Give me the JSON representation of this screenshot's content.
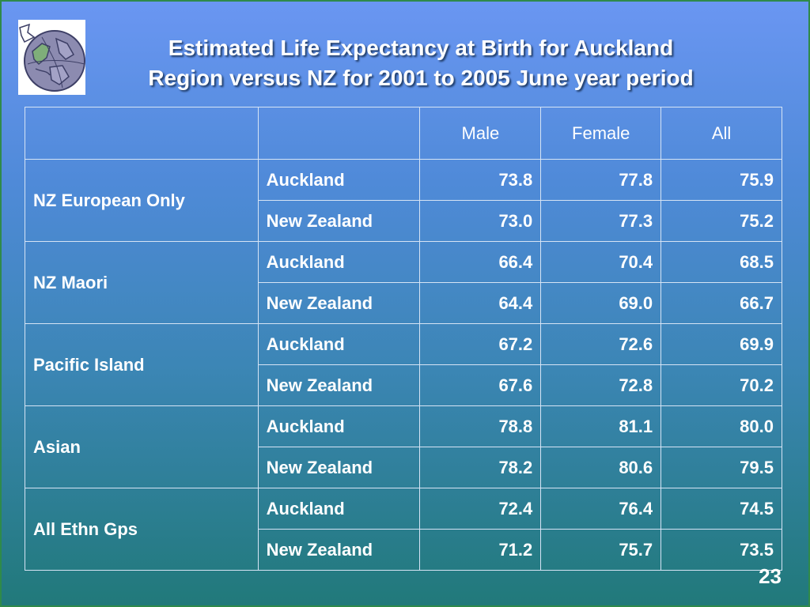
{
  "title": {
    "line1": "Estimated Life Expectancy at Birth for Auckland",
    "line2": "Region versus NZ for 2001 to 2005 June year period"
  },
  "table": {
    "columns": [
      "",
      "",
      "Male",
      "Female",
      "All"
    ],
    "groups": [
      {
        "ethnicity": "NZ European Only",
        "rows": [
          {
            "area": "Auckland",
            "male": "73.8",
            "female": "77.8",
            "all": "75.9"
          },
          {
            "area": "New Zealand",
            "male": "73.0",
            "female": "77.3",
            "all": "75.2"
          }
        ]
      },
      {
        "ethnicity": "NZ Maori",
        "rows": [
          {
            "area": "Auckland",
            "male": "66.4",
            "female": "70.4",
            "all": "68.5"
          },
          {
            "area": "New Zealand",
            "male": "64.4",
            "female": "69.0",
            "all": "66.7"
          }
        ]
      },
      {
        "ethnicity": "Pacific Island",
        "rows": [
          {
            "area": "Auckland",
            "male": "67.2",
            "female": "72.6",
            "all": "69.9"
          },
          {
            "area": "New Zealand",
            "male": "67.6",
            "female": "72.8",
            "all": "70.2"
          }
        ]
      },
      {
        "ethnicity": "Asian",
        "rows": [
          {
            "area": "Auckland",
            "male": "78.8",
            "female": "81.1",
            "all": "80.0"
          },
          {
            "area": "New Zealand",
            "male": "78.2",
            "female": "80.6",
            "all": "79.5"
          }
        ]
      },
      {
        "ethnicity": "All Ethn Gps",
        "rows": [
          {
            "area": "Auckland",
            "male": "72.4",
            "female": "76.4",
            "all": "74.5"
          },
          {
            "area": "New Zealand",
            "male": "71.2",
            "female": "75.7",
            "all": "73.5"
          }
        ]
      }
    ]
  },
  "page_number": "23",
  "logo": {
    "icon": "globe-logo-icon"
  },
  "colors": {
    "background_top": "#6a96f2",
    "background_bottom": "#21797a",
    "text": "#ffffff",
    "grid_lines": "#d6e4f5"
  }
}
